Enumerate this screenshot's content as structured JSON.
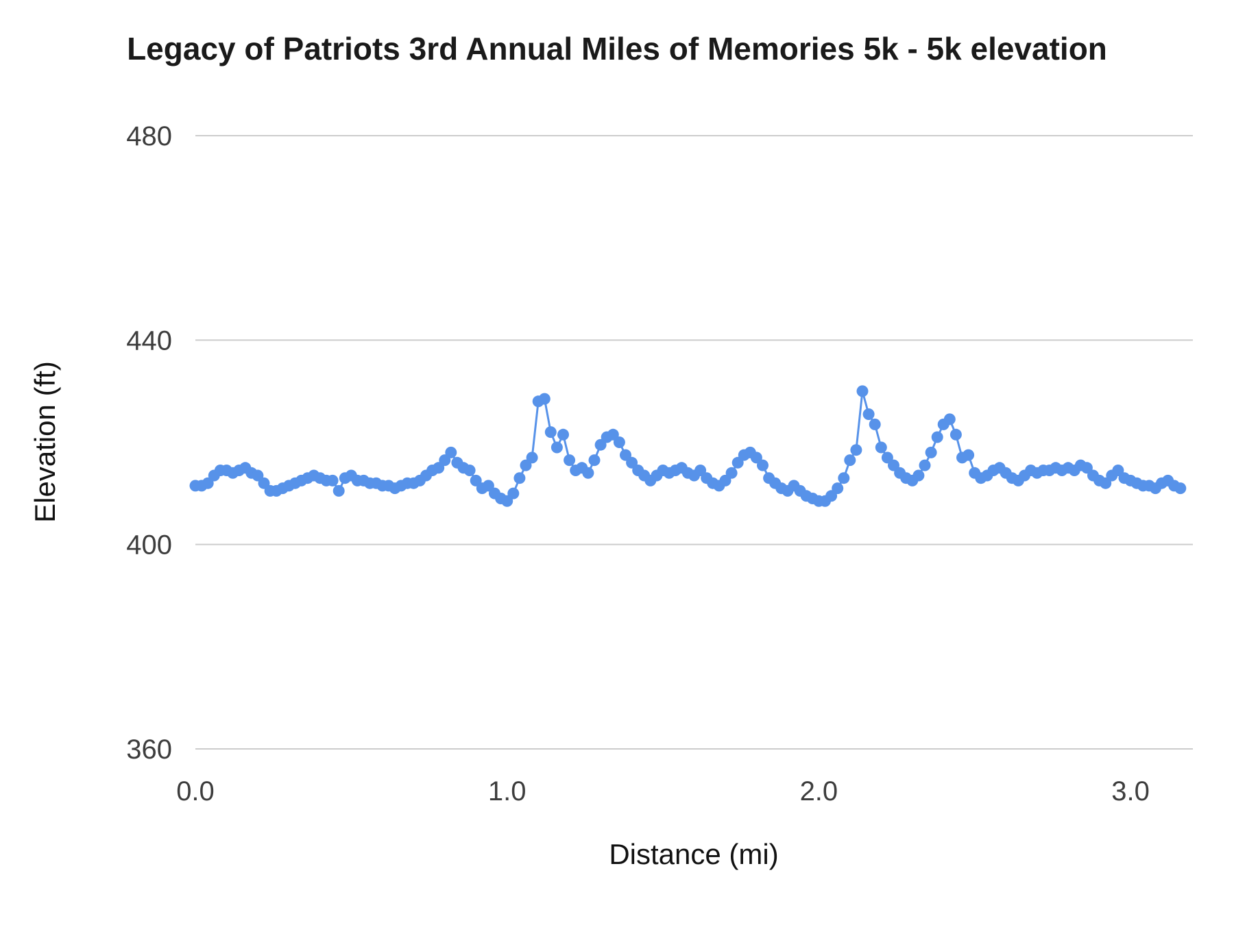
{
  "chart_data": {
    "type": "scatter",
    "title": "Legacy of Patriots 3rd Annual Miles of Memories 5k - 5k elevation",
    "xlabel": "Distance (mi)",
    "ylabel": "Elevation (ft)",
    "xlim": [
      0,
      3.2
    ],
    "ylim": [
      360,
      480
    ],
    "grid": "horizontal",
    "legend": "none",
    "marker_color": "#5792e9",
    "line_color": "#5792e9",
    "gridline_color": "#cccccc",
    "x_ticks": [
      {
        "value": 0,
        "label": "0.0"
      },
      {
        "value": 1,
        "label": "1.0"
      },
      {
        "value": 2,
        "label": "2.0"
      },
      {
        "value": 3,
        "label": "3.0"
      }
    ],
    "y_ticks": [
      {
        "value": 480,
        "label": "480"
      },
      {
        "value": 440,
        "label": "440"
      },
      {
        "value": 400,
        "label": "400"
      },
      {
        "value": 360,
        "label": "360"
      }
    ],
    "points": {
      "x_start": 0.0,
      "x_step": 0.02,
      "x_end": 3.16,
      "elevation_ft": [
        411.5,
        411.5,
        412.0,
        413.5,
        414.5,
        414.5,
        414.0,
        414.5,
        415.0,
        414.0,
        413.5,
        412.0,
        410.5,
        410.5,
        411.0,
        411.5,
        412.0,
        412.5,
        413.0,
        413.5,
        413.0,
        412.5,
        412.5,
        410.5,
        413.0,
        413.5,
        412.5,
        412.5,
        412.0,
        412.0,
        411.5,
        411.5,
        411.0,
        411.5,
        412.0,
        412.0,
        412.5,
        413.5,
        414.5,
        415.0,
        416.5,
        418.0,
        416.0,
        415.0,
        414.5,
        412.5,
        411.0,
        411.5,
        410.0,
        409.0,
        408.5,
        410.0,
        413.0,
        415.5,
        417.0,
        428.0,
        428.5,
        422.0,
        419.0,
        421.5,
        416.5,
        414.5,
        415.0,
        414.0,
        416.5,
        419.5,
        421.0,
        421.5,
        420.0,
        417.5,
        416.0,
        414.5,
        413.5,
        412.5,
        413.5,
        414.5,
        414.0,
        414.5,
        415.0,
        414.0,
        413.5,
        414.5,
        413.0,
        412.0,
        411.5,
        412.5,
        414.0,
        416.0,
        417.5,
        418.0,
        417.0,
        415.5,
        413.0,
        412.0,
        411.0,
        410.5,
        411.5,
        410.5,
        409.5,
        409.0,
        408.5,
        408.5,
        409.5,
        411.0,
        413.0,
        416.5,
        418.5,
        430.0,
        425.5,
        423.5,
        419.0,
        417.0,
        415.5,
        414.0,
        413.0,
        412.5,
        413.5,
        415.5,
        418.0,
        421.0,
        423.5,
        424.5,
        421.5,
        417.0,
        417.5,
        414.0,
        413.0,
        413.5,
        414.5,
        415.0,
        414.0,
        413.0,
        412.5,
        413.5,
        414.5,
        414.0,
        414.5,
        414.5,
        415.0,
        414.5,
        415.0,
        414.5,
        415.5,
        415.0,
        413.5,
        412.5,
        412.0,
        413.5,
        414.5,
        413.0,
        412.5,
        412.0,
        411.5,
        411.5,
        411.0,
        412.0,
        412.5,
        411.5,
        411.0
      ]
    }
  }
}
